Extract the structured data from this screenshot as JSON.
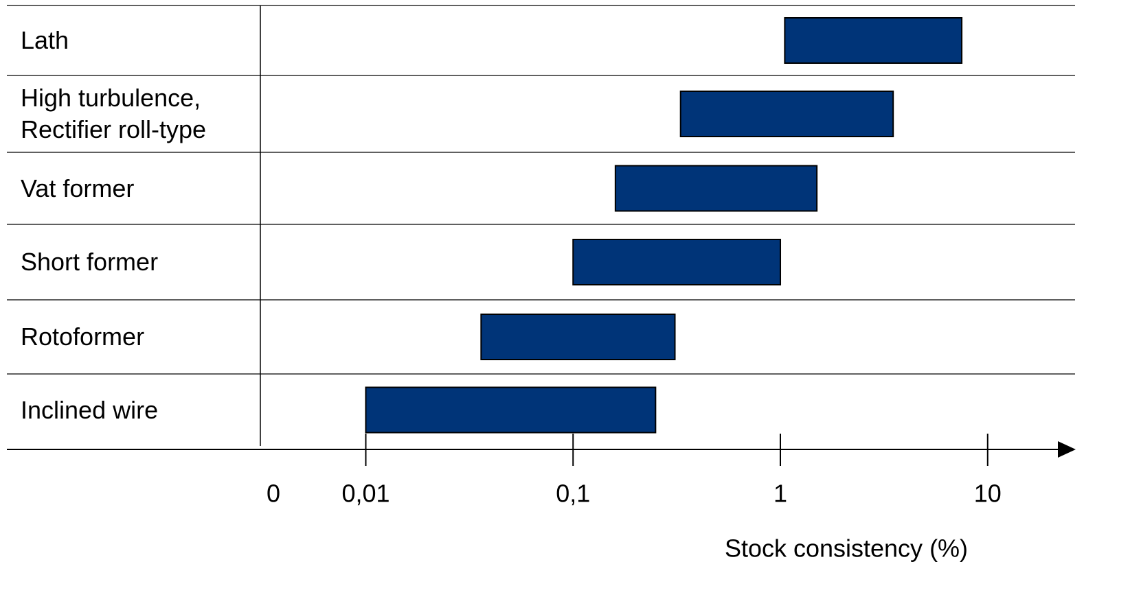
{
  "chart_data": {
    "type": "range_bar",
    "categories": [
      "Lath",
      "High turbulence, Rectifier roll-type",
      "Vat former",
      "Short former",
      "Rotoformer",
      "Inclined wire"
    ],
    "low": [
      1.05,
      0.33,
      0.16,
      0.1,
      0.036,
      0.01
    ],
    "high": [
      7.5,
      3.5,
      1.5,
      1,
      0.31,
      0.25
    ],
    "color": "#003478",
    "xscale": "log",
    "xlim": [
      0.0031,
      26.4
    ],
    "xticks": [
      {
        "value": 0.01,
        "label": "0,01"
      },
      {
        "value": 0.1,
        "label": "0,1"
      },
      1,
      10
    ],
    "origin_label": "0",
    "xlabel": "Stock consistency (%)"
  }
}
